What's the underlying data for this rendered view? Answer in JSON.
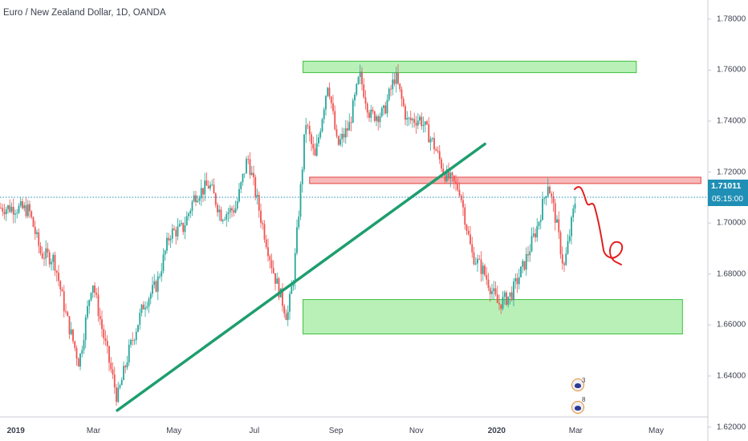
{
  "chart_data": {
    "type": "candlestick",
    "title": "Euro / New Zealand Dollar, 1D, OANDA",
    "y_axis": {
      "ticks": [
        "1.78000",
        "1.76000",
        "1.74000",
        "1.72000",
        "1.70000",
        "1.68000",
        "1.66000",
        "1.64000",
        "1.62000"
      ],
      "range": [
        1.6145,
        1.7875
      ]
    },
    "x_axis": {
      "labels": [
        "2019",
        "Mar",
        "May",
        "Jul",
        "Sep",
        "Nov",
        "2020",
        "Mar",
        "May"
      ],
      "bold_labels": [
        "2019",
        "2020"
      ]
    },
    "current_price": "1.71011",
    "countdown": "05:15:00",
    "price_series": [
      {
        "date": "2019-01-01",
        "close": 1.706
      },
      {
        "date": "2019-01-11",
        "close": 1.705
      },
      {
        "date": "2019-01-20",
        "close": 1.688
      },
      {
        "date": "2019-01-30",
        "close": 1.686
      },
      {
        "date": "2019-02-08",
        "close": 1.664
      },
      {
        "date": "2019-02-18",
        "close": 1.645
      },
      {
        "date": "2019-02-28",
        "close": 1.678
      },
      {
        "date": "2019-03-08",
        "close": 1.657
      },
      {
        "date": "2019-03-19",
        "close": 1.631
      },
      {
        "date": "2019-03-28",
        "close": 1.65
      },
      {
        "date": "2019-04-08",
        "close": 1.668
      },
      {
        "date": "2019-04-18",
        "close": 1.676
      },
      {
        "date": "2019-04-28",
        "close": 1.696
      },
      {
        "date": "2019-05-08",
        "close": 1.698
      },
      {
        "date": "2019-05-17",
        "close": 1.711
      },
      {
        "date": "2019-05-28",
        "close": 1.715
      },
      {
        "date": "2019-06-06",
        "close": 1.703
      },
      {
        "date": "2019-06-17",
        "close": 1.706
      },
      {
        "date": "2019-06-26",
        "close": 1.726
      },
      {
        "date": "2019-07-06",
        "close": 1.702
      },
      {
        "date": "2019-07-16",
        "close": 1.68
      },
      {
        "date": "2019-07-26",
        "close": 1.663
      },
      {
        "date": "2019-07-31",
        "close": 1.68
      },
      {
        "date": "2019-08-06",
        "close": 1.719
      },
      {
        "date": "2019-08-09",
        "close": 1.74
      },
      {
        "date": "2019-08-16",
        "close": 1.725
      },
      {
        "date": "2019-08-26",
        "close": 1.756
      },
      {
        "date": "2019-09-02",
        "close": 1.73
      },
      {
        "date": "2019-09-11",
        "close": 1.738
      },
      {
        "date": "2019-09-19",
        "close": 1.758
      },
      {
        "date": "2019-09-27",
        "close": 1.742
      },
      {
        "date": "2019-10-07",
        "close": 1.743
      },
      {
        "date": "2019-10-16",
        "close": 1.758
      },
      {
        "date": "2019-10-25",
        "close": 1.74
      },
      {
        "date": "2019-11-04",
        "close": 1.741
      },
      {
        "date": "2019-11-14",
        "close": 1.731
      },
      {
        "date": "2019-11-23",
        "close": 1.719
      },
      {
        "date": "2019-12-04",
        "close": 1.713
      },
      {
        "date": "2019-12-13",
        "close": 1.688
      },
      {
        "date": "2019-12-22",
        "close": 1.681
      },
      {
        "date": "2020-01-02",
        "close": 1.668
      },
      {
        "date": "2020-01-12",
        "close": 1.672
      },
      {
        "date": "2020-01-22",
        "close": 1.684
      },
      {
        "date": "2020-02-01",
        "close": 1.699
      },
      {
        "date": "2020-02-09",
        "close": 1.716
      },
      {
        "date": "2020-02-15",
        "close": 1.701
      },
      {
        "date": "2020-02-21",
        "close": 1.682
      },
      {
        "date": "2020-03-01",
        "close": 1.71
      }
    ],
    "zones": [
      {
        "kind": "resistance-top",
        "color": "#7ee37e",
        "from": "2019-08-07",
        "to": "2020-04-16",
        "low": 1.759,
        "high": 1.7635
      },
      {
        "kind": "resistance-mid",
        "color": "#f08080",
        "from": "2019-08-12",
        "to": "2020-06-04",
        "low": 1.7155,
        "high": 1.718
      },
      {
        "kind": "support",
        "color": "#7ee37e",
        "from": "2019-08-07",
        "to": "2020-05-21",
        "low": 1.6565,
        "high": 1.67
      }
    ],
    "trendline": {
      "color": "#1e9e6e",
      "from": {
        "date": "2019-03-19",
        "y": 1.6265
      },
      "to": {
        "date": "2019-12-23",
        "y": 1.731
      }
    },
    "reference_line": {
      "y": 1.71011,
      "style": "dotted",
      "color": "#1f8fb5"
    },
    "drawn_projection": {
      "color": "#e0201f"
    },
    "colors": {
      "up": "#26a69a",
      "down": "#ef5350",
      "axis_text": "#3c4150",
      "badge": "#1f8fb5"
    },
    "reactions": [
      "3",
      "8"
    ]
  }
}
